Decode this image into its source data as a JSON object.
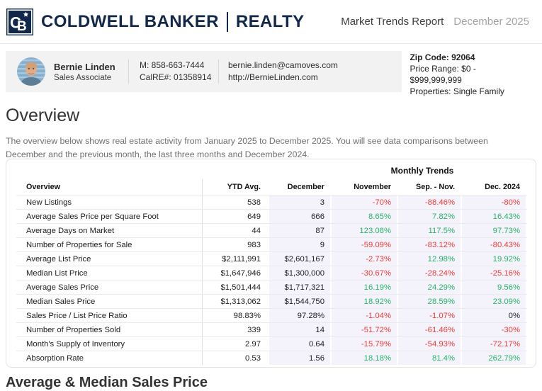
{
  "header": {
    "brand": {
      "monogram_c": "C",
      "monogram_b": "B",
      "name": "COLDWELL BANKER",
      "division": "REALTY"
    },
    "report_title": "Market Trends Report",
    "report_period": "December 2025"
  },
  "agent": {
    "name": "Bernie Linden",
    "title": "Sales Associate",
    "mobile": "M: 858-663-7444",
    "license": "CalRE#: 01358914",
    "email": "bernie.linden@camoves.com",
    "website": "http://BernieLinden.com"
  },
  "filters": {
    "zip": "Zip Code: 92064",
    "price_range_line1": "Price Range: $0 -",
    "price_range_line2": "$999,999,999",
    "properties": "Properties: Single Family"
  },
  "overview": {
    "title": "Overview",
    "description_line1": "The overview below shows real estate activity from January 2025 to December 2025. You will see data comparisons between",
    "description_line2": "December and the previous month, the last three months and December 2024."
  },
  "table": {
    "group_header": "Monthly Trends",
    "columns": [
      "Overview",
      "YTD Avg.",
      "December",
      "November",
      "Sep. - Nov.",
      "Dec. 2024"
    ],
    "rows": [
      {
        "label": "New Listings",
        "ytd": "538",
        "december": "3",
        "comps": [
          {
            "v": "-70%",
            "trend": "down"
          },
          {
            "v": "-88.46%",
            "trend": "down"
          },
          {
            "v": "-80%",
            "trend": "down"
          }
        ]
      },
      {
        "label": "Average Sales Price per Square Foot",
        "ytd": "649",
        "december": "666",
        "comps": [
          {
            "v": "8.65%",
            "trend": "up"
          },
          {
            "v": "7.82%",
            "trend": "up"
          },
          {
            "v": "16.43%",
            "trend": "up"
          }
        ]
      },
      {
        "label": "Average Days on Market",
        "ytd": "44",
        "december": "87",
        "comps": [
          {
            "v": "123.08%",
            "trend": "up"
          },
          {
            "v": "117.5%",
            "trend": "up"
          },
          {
            "v": "97.73%",
            "trend": "up"
          }
        ]
      },
      {
        "label": "Number of Properties for Sale",
        "ytd": "983",
        "december": "9",
        "comps": [
          {
            "v": "-59.09%",
            "trend": "down"
          },
          {
            "v": "-83.12%",
            "trend": "down"
          },
          {
            "v": "-80.43%",
            "trend": "down"
          }
        ]
      },
      {
        "label": "Average List Price",
        "ytd": "$2,111,991",
        "december": "$2,601,167",
        "comps": [
          {
            "v": "-2.73%",
            "trend": "down"
          },
          {
            "v": "12.98%",
            "trend": "up"
          },
          {
            "v": "19.92%",
            "trend": "up"
          }
        ]
      },
      {
        "label": "Median List Price",
        "ytd": "$1,647,946",
        "december": "$1,300,000",
        "comps": [
          {
            "v": "-30.67%",
            "trend": "down"
          },
          {
            "v": "-28.24%",
            "trend": "down"
          },
          {
            "v": "-25.16%",
            "trend": "down"
          }
        ]
      },
      {
        "label": "Average Sales Price",
        "ytd": "$1,501,444",
        "december": "$1,717,321",
        "comps": [
          {
            "v": "16.19%",
            "trend": "up"
          },
          {
            "v": "24.29%",
            "trend": "up"
          },
          {
            "v": "9.56%",
            "trend": "up"
          }
        ]
      },
      {
        "label": "Median Sales Price",
        "ytd": "$1,313,062",
        "december": "$1,544,750",
        "comps": [
          {
            "v": "18.92%",
            "trend": "up"
          },
          {
            "v": "28.59%",
            "trend": "up"
          },
          {
            "v": "23.09%",
            "trend": "up"
          }
        ]
      },
      {
        "label": "Sales Price / List Price Ratio",
        "ytd": "98.83%",
        "december": "97.28%",
        "comps": [
          {
            "v": "-1.04%",
            "trend": "down"
          },
          {
            "v": "-1.07%",
            "trend": "down"
          },
          {
            "v": "0%",
            "trend": "flat"
          }
        ]
      },
      {
        "label": "Number of Properties Sold",
        "ytd": "339",
        "december": "14",
        "comps": [
          {
            "v": "-51.72%",
            "trend": "down"
          },
          {
            "v": "-61.46%",
            "trend": "down"
          },
          {
            "v": "-30%",
            "trend": "down"
          }
        ]
      },
      {
        "label": "Month's Supply of Inventory",
        "ytd": "2.97",
        "december": "0.64",
        "comps": [
          {
            "v": "-15.79%",
            "trend": "down"
          },
          {
            "v": "-54.93%",
            "trend": "down"
          },
          {
            "v": "-72.17%",
            "trend": "down"
          }
        ]
      },
      {
        "label": "Absorption Rate",
        "ytd": "0.53",
        "december": "1.56",
        "comps": [
          {
            "v": "18.18%",
            "trend": "up"
          },
          {
            "v": "81.4%",
            "trend": "up"
          },
          {
            "v": "262.79%",
            "trend": "up"
          }
        ]
      }
    ]
  },
  "next_section": {
    "title": "Average & Median Sales Price"
  },
  "colors": {
    "brand_navy": "#12284B",
    "positive": "#25b366",
    "negative": "#ee3b33",
    "trend_column_bg": "#f4f3fb"
  }
}
